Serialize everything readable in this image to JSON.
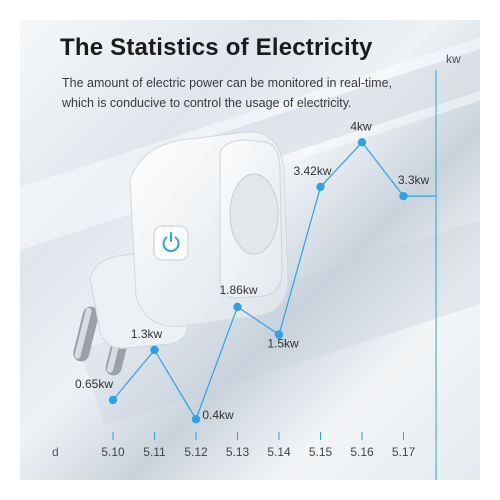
{
  "header": {
    "title": "The Statistics of Electricity",
    "subtitle_line1": "The amount of electric power can be monitored in real-time,",
    "subtitle_line2": "which is conducive to control the usage of electricity."
  },
  "product": {
    "name": "smart plug",
    "icon": "power-icon",
    "accent_color": "#2aa3e8"
  },
  "chart_data": {
    "type": "line",
    "xlabel": "d",
    "ylabel": "kw",
    "categories": [
      "5.10",
      "5.11",
      "5.12",
      "5.13",
      "5.14",
      "5.15",
      "5.16",
      "5.17"
    ],
    "series": [
      {
        "values": [
          0.65,
          1.3,
          0.4,
          1.86,
          1.5,
          3.42,
          4,
          3.3
        ],
        "labels": [
          "0.65kw",
          "1.3kw",
          "0.4kw",
          "1.86kw",
          "1.5kw",
          "3.42kw",
          "4kw",
          "3.3kw"
        ]
      }
    ],
    "ylim": [
      0,
      5.2
    ],
    "grid": false,
    "line_color": "#2aa3e8"
  }
}
